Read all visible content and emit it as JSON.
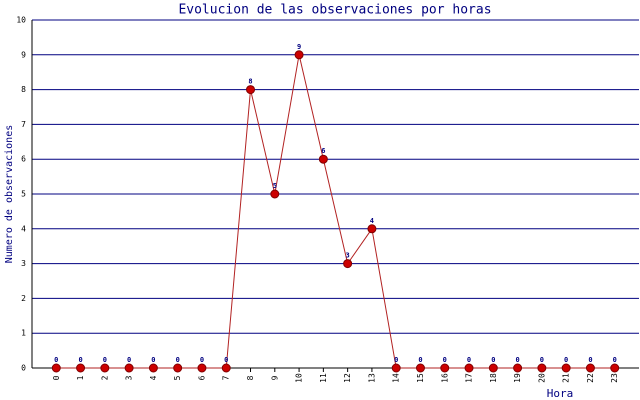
{
  "chart_data": {
    "type": "line",
    "title": "Evolucion de las observaciones por horas",
    "x_label": "Hora",
    "y_label": "Numero de observaciones",
    "x": [
      0,
      1,
      2,
      3,
      4,
      5,
      6,
      7,
      8,
      9,
      10,
      11,
      12,
      13,
      14,
      15,
      16,
      17,
      18,
      19,
      20,
      21,
      22,
      23
    ],
    "xlim": [
      -1,
      24
    ],
    "xticks": [
      0,
      1,
      2,
      3,
      4,
      5,
      6,
      7,
      8,
      9,
      10,
      11,
      12,
      13,
      14,
      15,
      16,
      17,
      18,
      19,
      20,
      21,
      22,
      23
    ],
    "ylim": [
      0,
      10
    ],
    "yticks": [
      0,
      1,
      2,
      3,
      4,
      5,
      6,
      7,
      8,
      9,
      10
    ],
    "grid": true,
    "series": [
      {
        "color": "#b22222",
        "marker_color": "#cc0000",
        "values": [
          0,
          0,
          0,
          0,
          0,
          0,
          0,
          0,
          8,
          5,
          9,
          6,
          3,
          4,
          0,
          0,
          0,
          0,
          0,
          0,
          0,
          0,
          0,
          0
        ]
      }
    ]
  }
}
